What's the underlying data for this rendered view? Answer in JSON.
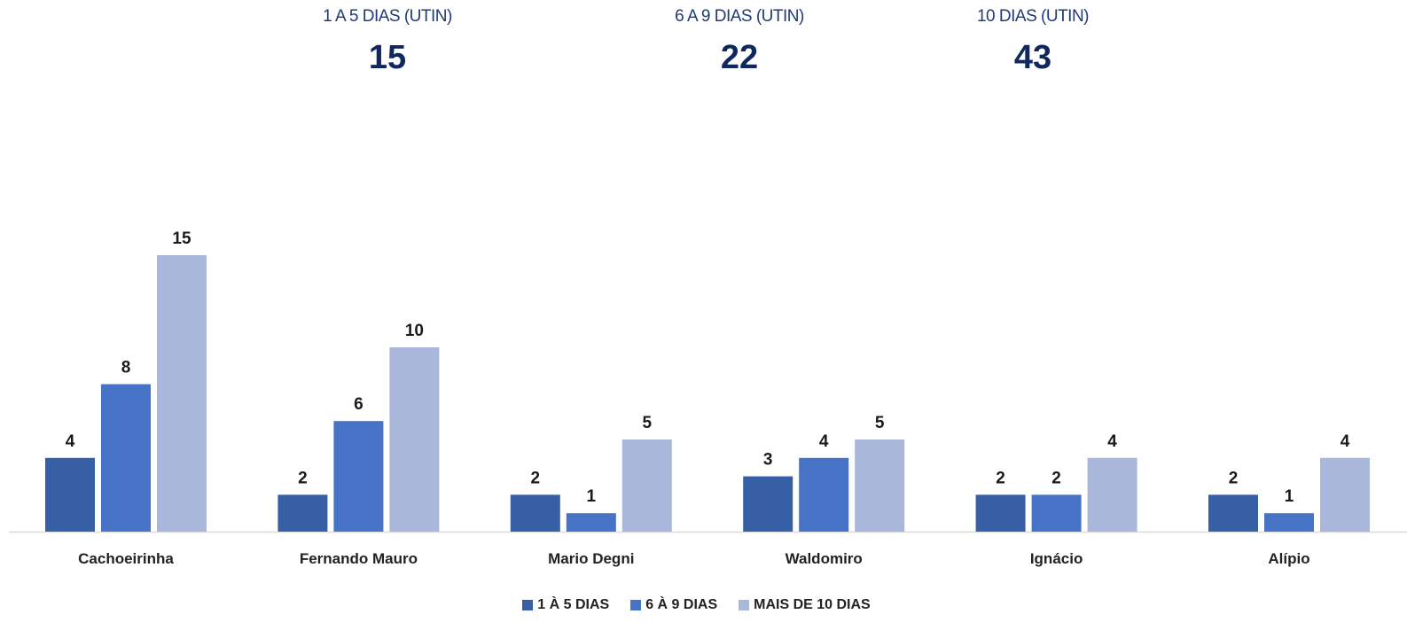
{
  "kpis": [
    {
      "label": "1 A 5 DIAS (UTIN)",
      "value": "15"
    },
    {
      "label": "6 A 9 DIAS (UTIN)",
      "value": "22"
    },
    {
      "label": "10 DIAS (UTIN)",
      "value": "43"
    }
  ],
  "chart_data": {
    "type": "bar",
    "title": "",
    "xlabel": "",
    "ylabel": "",
    "categories": [
      "Cachoeirinha",
      "Fernando Mauro",
      "Mario Degni",
      "Waldomiro",
      "Ignácio",
      "Alípio"
    ],
    "series": [
      {
        "name": "1 À  5 DIAS",
        "color": "#365fa6",
        "values": [
          4,
          2,
          2,
          3,
          2,
          2
        ]
      },
      {
        "name": "6 À 9 DIAS",
        "color": "#4673c6",
        "values": [
          8,
          6,
          1,
          4,
          2,
          1
        ]
      },
      {
        "name": "MAIS DE 10 DIAS",
        "color": "#a9b7db",
        "values": [
          15,
          10,
          5,
          5,
          4,
          4
        ]
      }
    ],
    "ylim": [
      0,
      15
    ],
    "grid": false,
    "legend": "bottom",
    "data_labels": true
  }
}
